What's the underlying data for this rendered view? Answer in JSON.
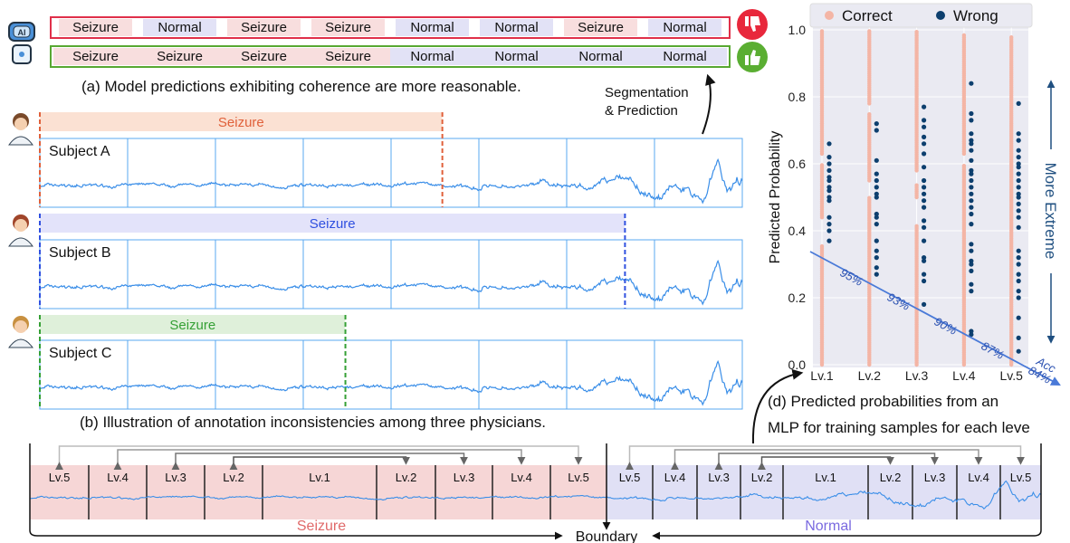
{
  "panel_a": {
    "rows": [
      {
        "verdict": "thumbs-down",
        "border": "#e0304a",
        "labels": [
          "Seizure",
          "Normal",
          "Seizure",
          "Seizure",
          "Normal",
          "Normal",
          "Seizure",
          "Normal"
        ]
      },
      {
        "verdict": "thumbs-up",
        "border": "#58a832",
        "labels": [
          "Seizure",
          "Seizure",
          "Seizure",
          "Seizure",
          "Normal",
          "Normal",
          "Normal",
          "Normal"
        ]
      }
    ],
    "caption": "(a) Model predictions exhibiting coherence are more reasonable.",
    "icons": [
      "robot-ai-icon",
      "thumbs-down-icon",
      "thumbs-up-icon"
    ]
  },
  "segmentation_label": [
    "Segmentation",
    "& Prediction"
  ],
  "panel_b": {
    "subjects": [
      {
        "name": "Subject A",
        "annotation": "Seizure",
        "color": "#e0603a",
        "bar": "#fbe1d3",
        "annotated_fraction": 0.573
      },
      {
        "name": "Subject B",
        "annotation": "Seizure",
        "color": "#3050e0",
        "bar": "#e3e3fa",
        "annotated_fraction": 0.833
      },
      {
        "name": "Subject C",
        "annotation": "Seizure",
        "color": "#35a035",
        "bar": "#dff0da",
        "annotated_fraction": 0.435
      }
    ],
    "caption": "(b) Illustration of annotation inconsistencies among three physicians.",
    "signal_color": "#3a8ee8"
  },
  "panel_c": {
    "seizure_levels": [
      "Lv.5",
      "Lv.4",
      "Lv.3",
      "Lv.2",
      "Lv.1",
      "Lv.2",
      "Lv.3",
      "Lv.4",
      "Lv.5"
    ],
    "normal_levels": [
      "Lv.5",
      "Lv.4",
      "Lv.3",
      "Lv.2",
      "Lv.1",
      "Lv.2",
      "Lv.3",
      "Lv.4",
      "Lv.5"
    ],
    "seizure_label": "Seizure",
    "normal_label": "Normal",
    "boundary_label": "Boundary",
    "colors": {
      "seizure": "#f6d6d6",
      "normal": "#e0e0f5",
      "seizure_text": "#e06a6a",
      "normal_text": "#7a6ae0"
    }
  },
  "chart_data": {
    "type": "scatter",
    "xlabel": "",
    "ylabel": "Predicted Probability",
    "categories": [
      "Lv.1",
      "Lv.2",
      "Lv.3",
      "Lv.4",
      "Lv.5"
    ],
    "yticks": [
      "0.0",
      "0.2",
      "0.4",
      "0.6",
      "0.8",
      "1.0"
    ],
    "ylim": [
      0,
      1
    ],
    "grid": true,
    "legend": {
      "position": "top",
      "entries": [
        {
          "name": "Correct",
          "color": "#f4b5a5"
        },
        {
          "name": "Wrong",
          "color": "#0d3f6e"
        }
      ]
    },
    "correct_ranges": [
      [
        [
          0,
          0.36
        ],
        [
          0.44,
          0.6
        ],
        [
          0.63,
          1.0
        ]
      ],
      [
        [
          0,
          0.5
        ],
        [
          0.55,
          0.75
        ],
        [
          0.78,
          1.0
        ]
      ],
      [
        [
          0,
          0.42
        ],
        [
          0.5,
          0.54
        ],
        [
          0.58,
          1.0
        ]
      ],
      [
        [
          0,
          0.6
        ],
        [
          0.63,
          0.99
        ]
      ],
      [
        [
          0,
          0.98
        ]
      ]
    ],
    "wrong": [
      [
        0.66,
        0.62,
        0.6,
        0.58,
        0.56,
        0.55,
        0.53,
        0.52,
        0.5,
        0.49,
        0.44,
        0.42,
        0.4,
        0.37
      ],
      [
        0.72,
        0.7,
        0.61,
        0.57,
        0.55,
        0.53,
        0.51,
        0.5,
        0.45,
        0.44,
        0.42,
        0.37,
        0.34,
        0.32,
        0.29,
        0.27
      ],
      [
        0.77,
        0.73,
        0.71,
        0.68,
        0.66,
        0.63,
        0.59,
        0.55,
        0.53,
        0.51,
        0.49,
        0.47,
        0.43,
        0.41,
        0.37,
        0.32,
        0.31,
        0.27,
        0.25,
        0.18
      ],
      [
        0.84,
        0.75,
        0.73,
        0.69,
        0.67,
        0.66,
        0.64,
        0.61,
        0.58,
        0.57,
        0.55,
        0.53,
        0.51,
        0.49,
        0.47,
        0.45,
        0.42,
        0.36,
        0.34,
        0.31,
        0.3,
        0.28,
        0.24,
        0.22,
        0.1,
        0.09
      ],
      [
        0.78,
        0.69,
        0.67,
        0.64,
        0.62,
        0.6,
        0.59,
        0.57,
        0.55,
        0.53,
        0.51,
        0.5,
        0.48,
        0.46,
        0.44,
        0.41,
        0.34,
        0.32,
        0.3,
        0.27,
        0.25,
        0.22,
        0.2,
        0.14,
        0.08,
        0.04
      ]
    ],
    "accuracy": {
      "label": "Acc",
      "values": [
        "95%",
        "93%",
        "90%",
        "87%",
        "84%"
      ]
    },
    "annotation": "More Extreme",
    "accent": "#4a7ad8"
  },
  "panel_d_caption": [
    "(d) Predicted probabilities from an",
    "MLP for training samples for each leve"
  ]
}
